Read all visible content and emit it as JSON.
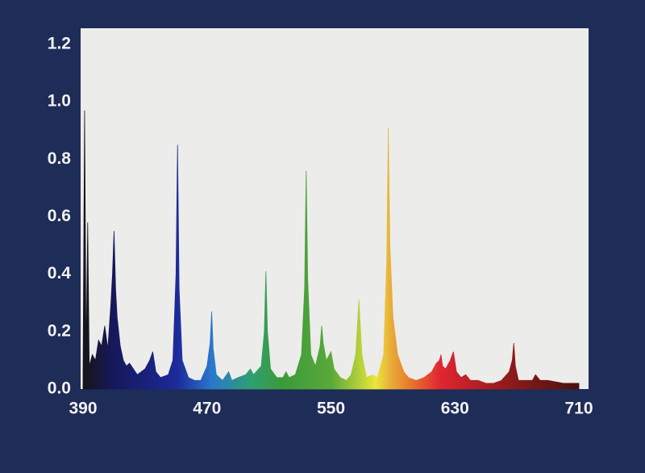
{
  "chart_data": {
    "type": "area",
    "x": [
      390,
      391,
      392,
      393,
      394,
      396,
      398,
      400,
      402,
      404,
      406,
      408,
      409,
      410,
      411,
      412,
      414,
      416,
      418,
      420,
      425,
      430,
      433,
      435,
      437,
      440,
      445,
      448,
      450,
      451,
      452,
      454,
      458,
      462,
      466,
      470,
      472,
      473,
      474,
      476,
      480,
      484,
      486,
      490,
      495,
      498,
      500,
      505,
      507,
      508,
      509,
      511,
      515,
      519,
      521,
      523,
      527,
      531,
      533,
      534,
      535,
      537,
      540,
      543,
      544,
      545,
      547,
      549,
      550,
      552,
      556,
      560,
      563,
      566,
      568,
      570,
      573,
      577,
      580,
      584,
      586,
      587,
      588,
      590,
      593,
      597,
      600,
      605,
      610,
      615,
      618,
      620,
      621,
      622,
      624,
      627,
      629,
      631,
      634,
      637,
      640,
      645,
      650,
      655,
      660,
      665,
      667,
      668,
      669,
      671,
      675,
      680,
      682,
      685,
      690,
      700,
      710
    ],
    "values": [
      0.05,
      0.97,
      0.1,
      0.58,
      0.08,
      0.12,
      0.1,
      0.17,
      0.15,
      0.22,
      0.14,
      0.3,
      0.4,
      0.55,
      0.35,
      0.25,
      0.15,
      0.1,
      0.08,
      0.09,
      0.05,
      0.07,
      0.1,
      0.13,
      0.06,
      0.04,
      0.05,
      0.1,
      0.4,
      0.85,
      0.35,
      0.1,
      0.04,
      0.03,
      0.03,
      0.08,
      0.16,
      0.27,
      0.14,
      0.05,
      0.03,
      0.06,
      0.03,
      0.04,
      0.05,
      0.07,
      0.05,
      0.08,
      0.2,
      0.41,
      0.2,
      0.07,
      0.04,
      0.04,
      0.06,
      0.04,
      0.05,
      0.12,
      0.35,
      0.76,
      0.38,
      0.12,
      0.08,
      0.15,
      0.22,
      0.16,
      0.1,
      0.12,
      0.13,
      0.07,
      0.04,
      0.03,
      0.05,
      0.12,
      0.31,
      0.12,
      0.04,
      0.05,
      0.04,
      0.12,
      0.45,
      0.91,
      0.5,
      0.25,
      0.12,
      0.06,
      0.04,
      0.03,
      0.04,
      0.06,
      0.09,
      0.1,
      0.12,
      0.08,
      0.07,
      0.1,
      0.13,
      0.06,
      0.04,
      0.05,
      0.03,
      0.03,
      0.02,
      0.02,
      0.03,
      0.06,
      0.1,
      0.16,
      0.08,
      0.03,
      0.03,
      0.03,
      0.05,
      0.03,
      0.03,
      0.02,
      0.02
    ],
    "xlim": [
      390,
      710
    ],
    "ylim": [
      0,
      1.2
    ],
    "xticks": [
      390,
      470,
      550,
      630,
      710
    ],
    "yticks": [
      {
        "value": 0,
        "label": "0.0"
      },
      0.2,
      0.4,
      0.6,
      0.8,
      {
        "value": 1,
        "label": "1.0"
      },
      1.2
    ]
  }
}
